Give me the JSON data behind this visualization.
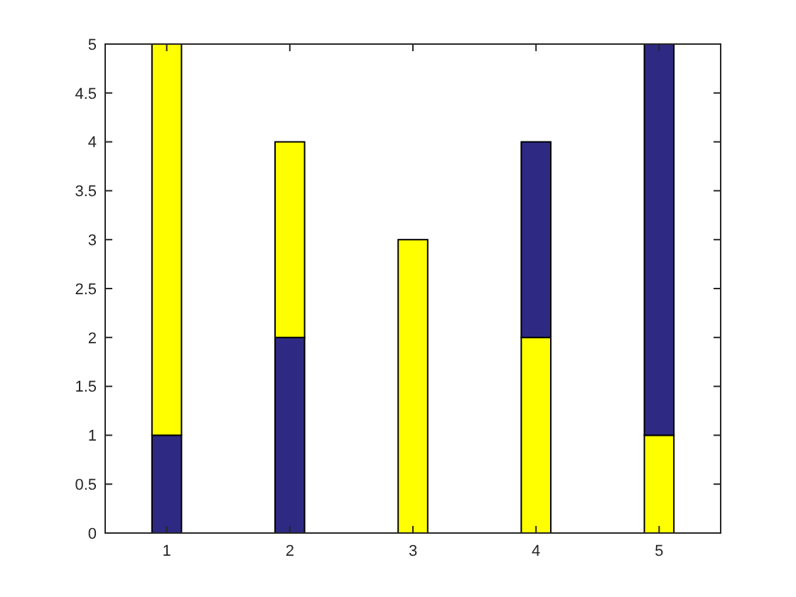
{
  "chart_data": {
    "type": "bar",
    "stacked": true,
    "categories": [
      "1",
      "2",
      "3",
      "4",
      "5"
    ],
    "series": [
      {
        "colors": [
          "#2e2a84",
          "#2e2a84",
          "#ffff00",
          "#ffff00",
          "#ffff00"
        ],
        "values": [
          1,
          2,
          3,
          2,
          1
        ]
      },
      {
        "colors": [
          "#ffff00",
          "#ffff00",
          null,
          "#2e2a84",
          "#2e2a84"
        ],
        "values": [
          4,
          2,
          null,
          2,
          4
        ]
      }
    ],
    "ylim": [
      0,
      5
    ],
    "yticks": [
      0,
      0.5,
      1,
      1.5,
      2,
      2.5,
      3,
      3.5,
      4,
      4.5,
      5
    ],
    "grid": false
  }
}
